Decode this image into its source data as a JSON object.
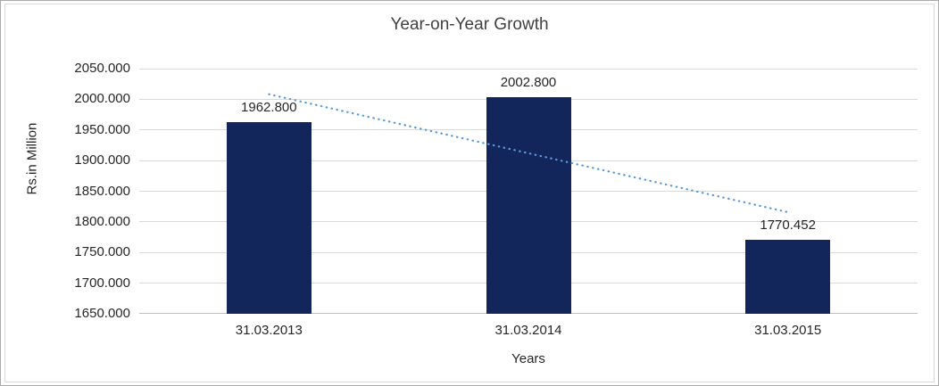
{
  "chart_data": {
    "type": "bar",
    "title": "Year-on-Year Growth",
    "xlabel": "Years",
    "ylabel": "Rs.in Million",
    "categories": [
      "31.03.2013",
      "31.03.2014",
      "31.03.2015"
    ],
    "values": [
      1962.8,
      2002.8,
      1770.452
    ],
    "data_labels": [
      "1962.800",
      "2002.800",
      "1770.452"
    ],
    "ylim": [
      1650,
      2050
    ],
    "ytick_step": 50,
    "ytick_labels": [
      "1650.000",
      "1700.000",
      "1750.000",
      "1800.000",
      "1850.000",
      "1900.000",
      "1950.000",
      "2000.000",
      "2050.000"
    ],
    "grid": true,
    "legend": "none",
    "bar_color": "#13265b",
    "trendline": {
      "type": "linear",
      "style": "dotted",
      "color": "#5b9bd5",
      "start_value": 2008.2,
      "end_value": 1815.8
    }
  }
}
